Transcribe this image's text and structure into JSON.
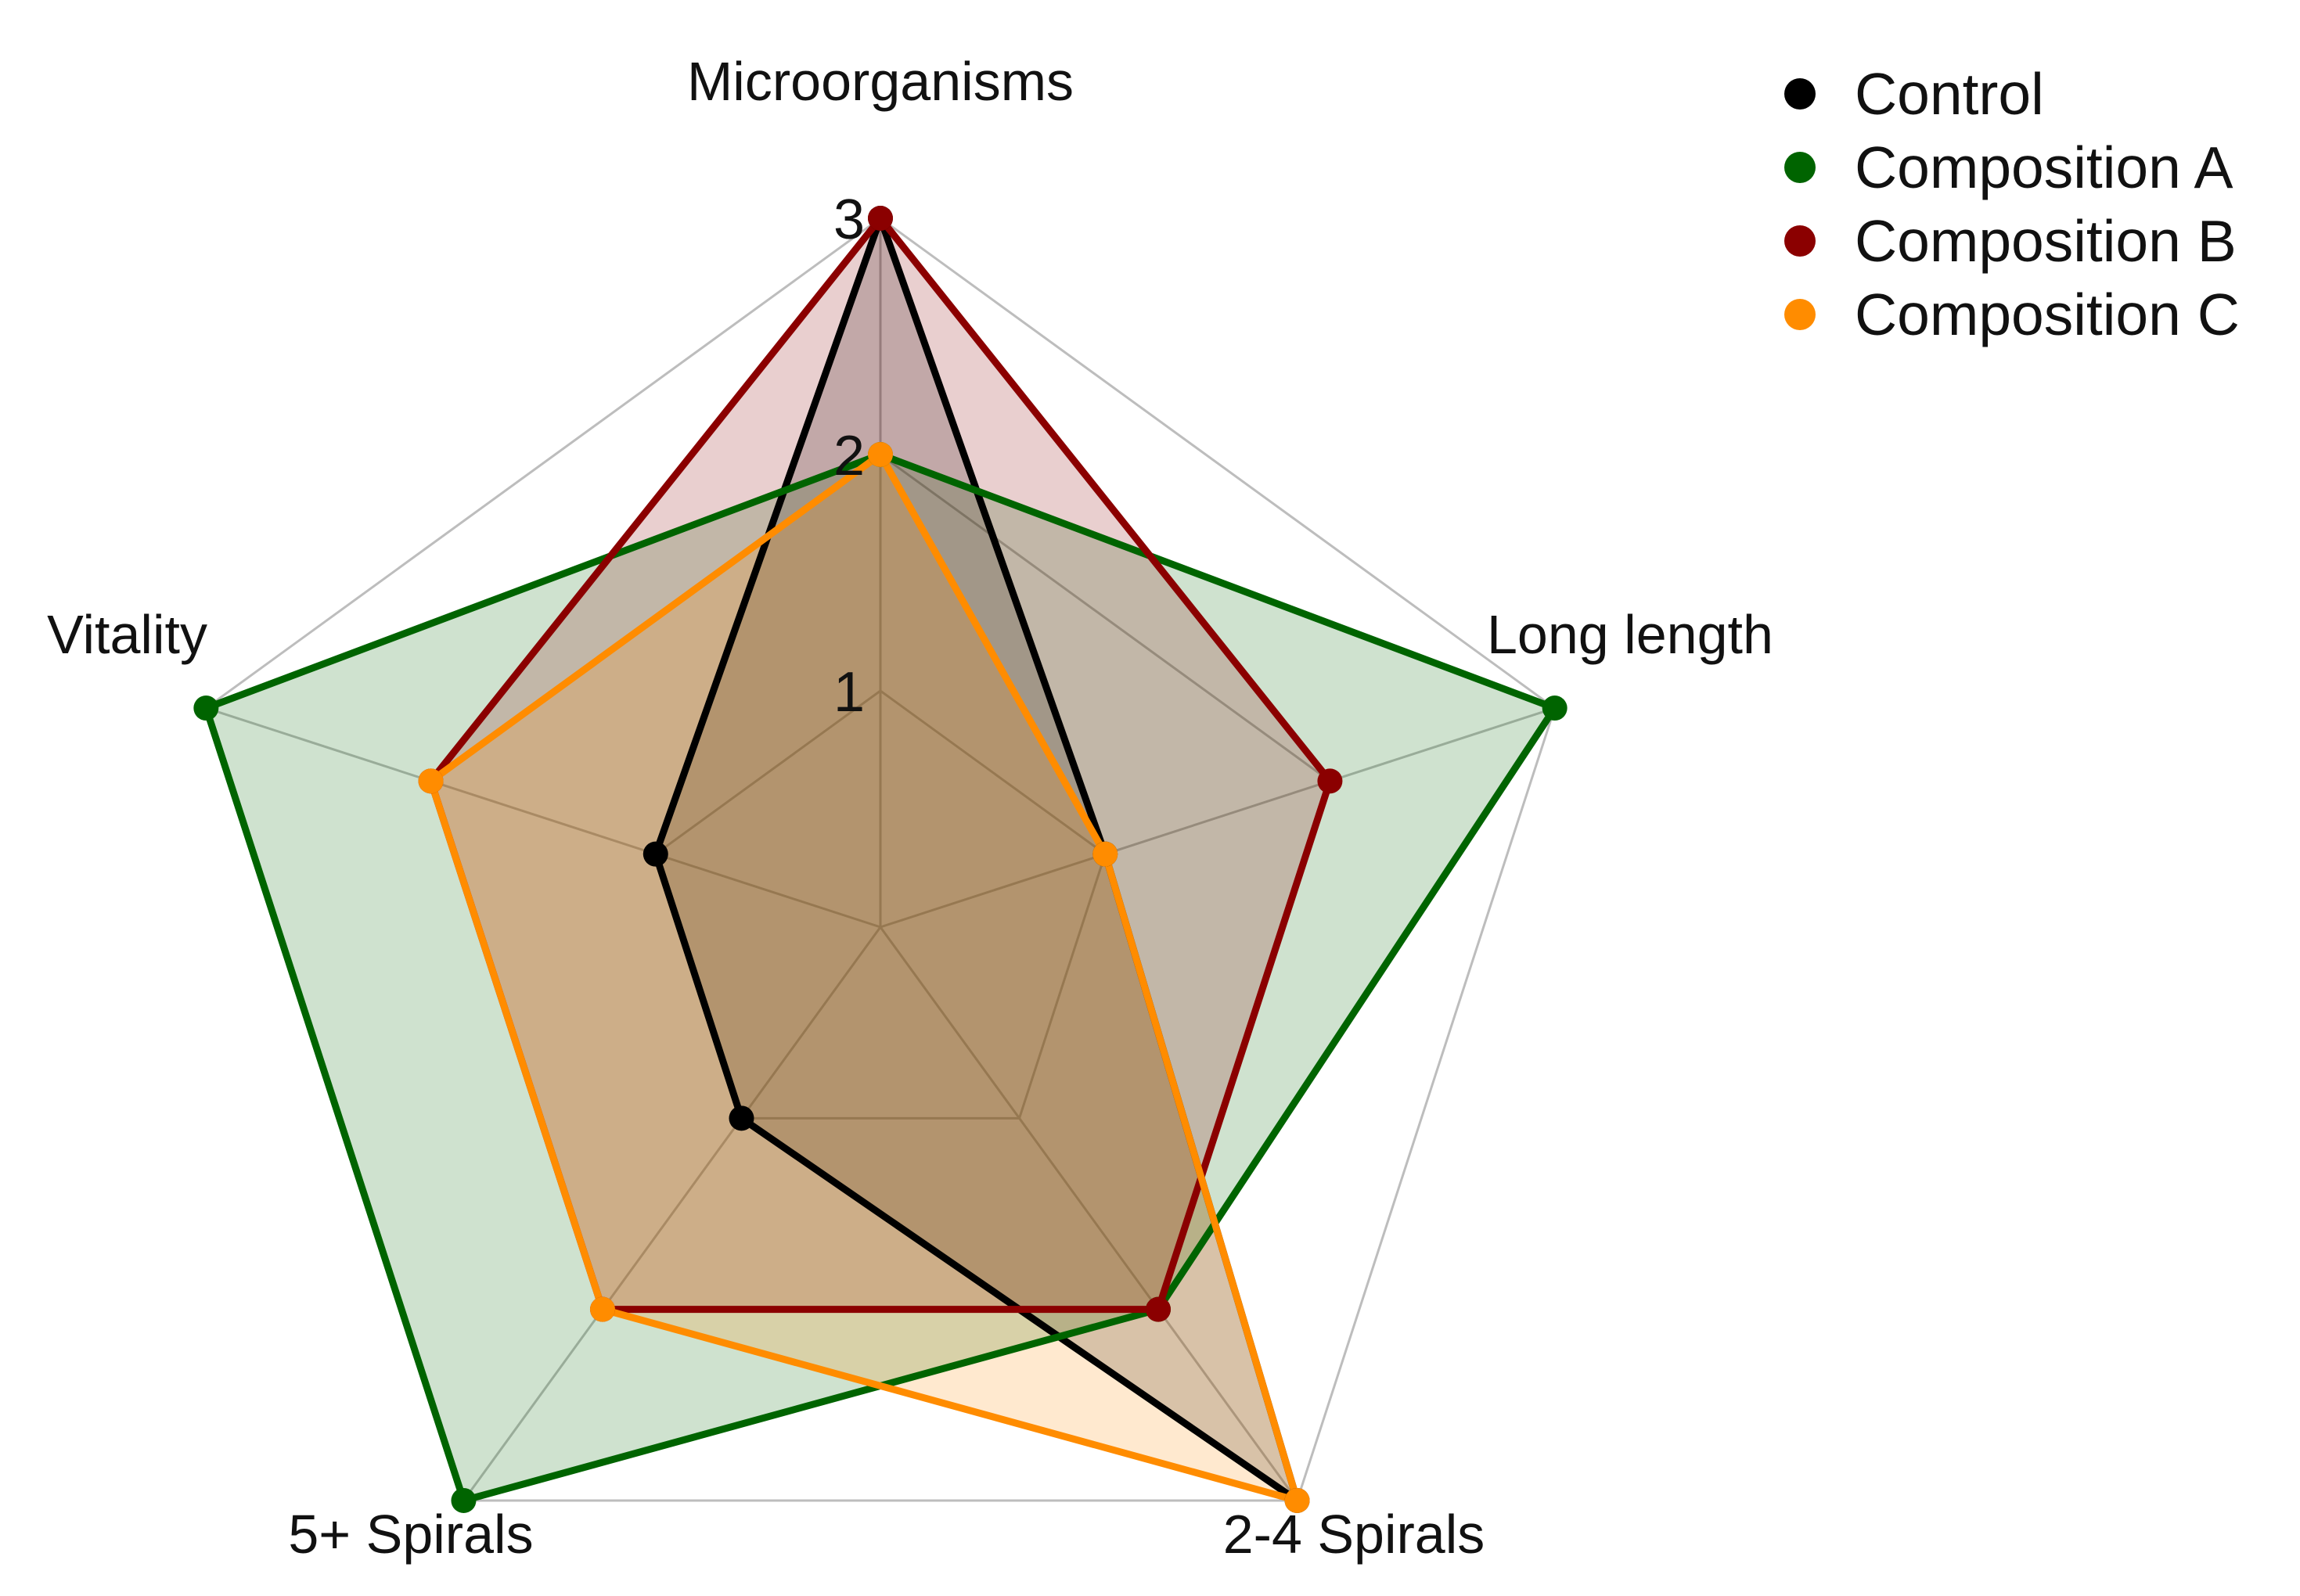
{
  "chart_data": {
    "type": "radar",
    "axes": [
      "Microorganisms",
      "Long length",
      "2-4 Spirals",
      "5+ Spirals",
      "Vitality"
    ],
    "rlim": [
      0,
      3
    ],
    "ticks": [
      1,
      2,
      3
    ],
    "tick_labels": [
      "1",
      "2",
      "3"
    ],
    "grid": true,
    "legend_position": "top-right",
    "series": [
      {
        "name": "Control",
        "color": "#000000",
        "values": [
          3,
          1,
          3,
          1,
          1
        ]
      },
      {
        "name": "Composition A",
        "color": "#006400",
        "values": [
          2,
          3,
          2,
          3,
          3
        ]
      },
      {
        "name": "Composition B",
        "color": "#8B0000",
        "values": [
          3,
          2,
          2,
          2,
          2
        ]
      },
      {
        "name": "Composition C",
        "color": "#FF8C00",
        "values": [
          2,
          1,
          3,
          2,
          2
        ]
      }
    ]
  }
}
